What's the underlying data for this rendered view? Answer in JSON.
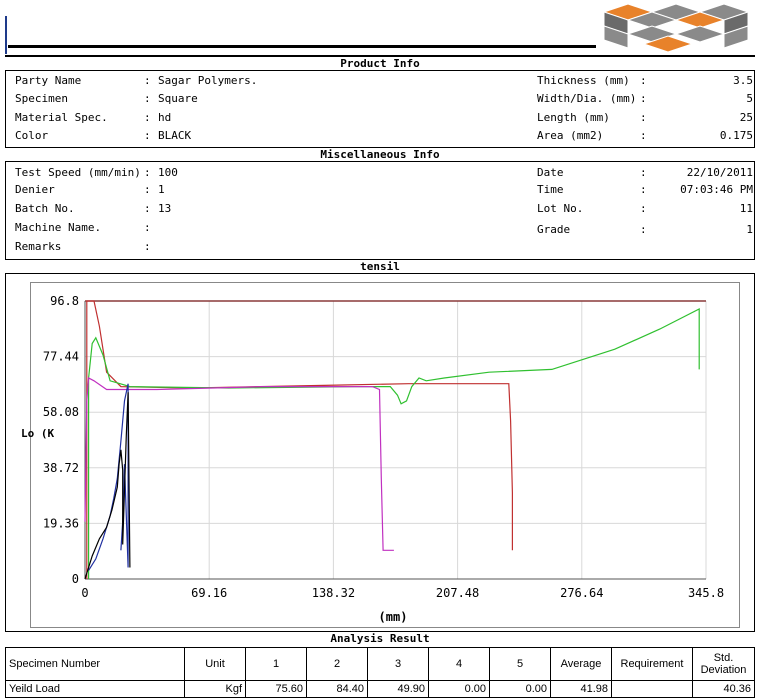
{
  "product_info": {
    "title": "Product Info",
    "left": [
      {
        "label": "Party Name",
        "value": "Sagar Polymers."
      },
      {
        "label": "Specimen",
        "value": "Square"
      },
      {
        "label": "Material Spec.",
        "value": "hd"
      },
      {
        "label": "Color",
        "value": "BLACK"
      }
    ],
    "right": [
      {
        "label": "Thickness (mm)",
        "value": "3.5"
      },
      {
        "label": "Width/Dia. (mm)",
        "value": "5"
      },
      {
        "label": "Length (mm)",
        "value": "25"
      },
      {
        "label": "Area (mm2)",
        "value": "0.175"
      }
    ]
  },
  "misc_info": {
    "title": "Miscellaneous Info",
    "left": [
      {
        "label": "Test Speed (mm/min)",
        "value": "100"
      },
      {
        "label": "Denier",
        "value": "1"
      },
      {
        "label": "Batch No.",
        "value": "13"
      },
      {
        "label": "Machine Name.",
        "value": ""
      },
      {
        "label": "Remarks",
        "value": ""
      }
    ],
    "right": [
      {
        "label": "Date",
        "value": "22/10/2011"
      },
      {
        "label": "Time",
        "value": "07:03:46 PM"
      },
      {
        "label": "Lot No.",
        "value": "11"
      },
      {
        "label": "Grade",
        "value": "1"
      }
    ]
  },
  "chart_section": {
    "title": "tensil"
  },
  "chart_data": {
    "type": "line",
    "xlabel": "(mm)",
    "ylabel_visible": "Lo (K",
    "xlim": [
      0,
      345.8
    ],
    "ylim": [
      0,
      96.8
    ],
    "x_ticks": [
      "0",
      "69.16",
      "138.32",
      "207.48",
      "276.64",
      "345.8"
    ],
    "y_ticks": [
      "0",
      "19.36",
      "38.72",
      "58.08",
      "77.44",
      "96.8"
    ],
    "grid": true,
    "series": [
      {
        "color": "#c03030",
        "points": [
          [
            1,
            0
          ],
          [
            1,
            96.8
          ],
          [
            5,
            96.8
          ],
          [
            8,
            88
          ],
          [
            12,
            72
          ],
          [
            20,
            67
          ],
          [
            60,
            66.5
          ],
          [
            140,
            67.5
          ],
          [
            180,
            68
          ],
          [
            230,
            68
          ],
          [
            236,
            68
          ],
          [
            237,
            55
          ],
          [
            238,
            30
          ],
          [
            238,
            10
          ]
        ]
      },
      {
        "color": "#30c030",
        "points": [
          [
            2,
            0
          ],
          [
            2,
            70
          ],
          [
            4,
            82
          ],
          [
            6,
            84
          ],
          [
            10,
            78
          ],
          [
            14,
            69
          ],
          [
            25,
            67
          ],
          [
            80,
            66.5
          ],
          [
            150,
            67
          ],
          [
            170,
            67
          ],
          [
            174,
            64
          ],
          [
            176,
            61
          ],
          [
            179,
            62
          ],
          [
            182,
            67
          ],
          [
            186,
            70
          ],
          [
            190,
            69
          ],
          [
            200,
            70
          ],
          [
            225,
            72
          ],
          [
            260,
            73
          ],
          [
            295,
            80
          ],
          [
            320,
            87
          ],
          [
            342,
            94
          ],
          [
            342,
            73
          ]
        ]
      },
      {
        "color": "#c030c0",
        "points": [
          [
            0,
            20
          ],
          [
            1,
            62
          ],
          [
            2,
            70
          ],
          [
            5,
            69
          ],
          [
            12,
            66
          ],
          [
            40,
            66
          ],
          [
            100,
            67
          ],
          [
            160,
            67
          ],
          [
            164,
            66
          ],
          [
            165,
            35
          ],
          [
            166,
            10
          ],
          [
            172,
            10
          ]
        ]
      },
      {
        "color": "#2030a0",
        "points": [
          [
            2,
            3
          ],
          [
            6,
            7
          ],
          [
            10,
            14
          ],
          [
            14,
            22
          ],
          [
            16,
            28
          ],
          [
            18,
            35
          ],
          [
            20,
            48
          ],
          [
            22,
            62
          ],
          [
            24,
            68
          ],
          [
            24,
            4
          ],
          [
            22,
            40
          ],
          [
            21,
            20
          ],
          [
            20,
            10
          ]
        ]
      },
      {
        "color": "#000000",
        "points": [
          [
            0,
            0
          ],
          [
            4,
            8
          ],
          [
            8,
            14
          ],
          [
            12,
            18
          ],
          [
            15,
            24
          ],
          [
            18,
            32
          ],
          [
            19,
            40
          ],
          [
            20,
            45
          ],
          [
            21,
            38
          ],
          [
            21,
            12
          ],
          [
            23,
            50
          ],
          [
            24,
            65
          ],
          [
            25,
            4
          ]
        ]
      }
    ]
  },
  "analysis": {
    "title": "Analysis Result",
    "headers": [
      "Specimen Number",
      "Unit",
      "1",
      "2",
      "3",
      "4",
      "5",
      "Average",
      "Requirement",
      "Std. Deviation"
    ],
    "rows": [
      [
        "Yeild Load",
        "Kgf",
        "75.60",
        "84.40",
        "49.90",
        "0.00",
        "0.00",
        "41.98",
        "",
        "40.36"
      ]
    ]
  }
}
